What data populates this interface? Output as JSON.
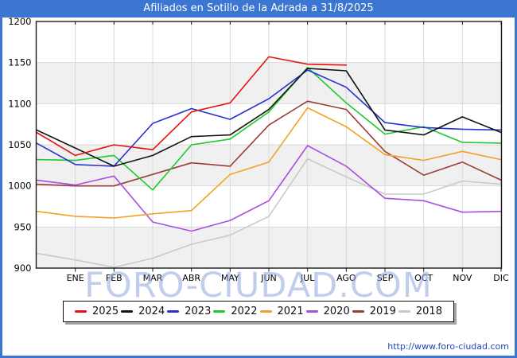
{
  "window": {
    "title": "Afiliados en Sotillo de la Adrada a 31/8/2025",
    "title_bar_color": "#3b76d3"
  },
  "chart_data": {
    "type": "line",
    "title": "Afiliados en Sotillo de la Adrada a 31/8/2025",
    "x_labels": [
      "ENE",
      "FEB",
      "MAR",
      "ABR",
      "MAY",
      "JUN",
      "JUL",
      "AGO",
      "SEP",
      "OCT",
      "NOV",
      "DIC"
    ],
    "x_axis_note": "first value of each series is plotted on the left axis edge and equals that year's previous December",
    "ylim": [
      900,
      1200
    ],
    "y_ticks": [
      900,
      950,
      1000,
      1050,
      1100,
      1150,
      1200
    ],
    "grid": true,
    "band_color": "#f0f0f0",
    "grid_color": "#d9d9d9",
    "legend_position": "bottom",
    "series": [
      {
        "name": "2025",
        "color": "#e81010",
        "values": [
          1065,
          1037,
          1050,
          1044,
          1090,
          1101,
          1157,
          1148,
          1147
        ]
      },
      {
        "name": "2024",
        "color": "#141414",
        "values": [
          1068,
          1046,
          1024,
          1037,
          1060,
          1062,
          1093,
          1143,
          1140,
          1068,
          1062,
          1084,
          1065
        ]
      },
      {
        "name": "2023",
        "color": "#2433cf",
        "values": [
          1052,
          1026,
          1024,
          1076,
          1094,
          1081,
          1106,
          1141,
          1120,
          1077,
          1071,
          1069,
          1068
        ]
      },
      {
        "name": "2022",
        "color": "#1ecb2e",
        "values": [
          1032,
          1031,
          1037,
          995,
          1050,
          1057,
          1090,
          1144,
          1101,
          1063,
          1072,
          1053,
          1052
        ]
      },
      {
        "name": "2021",
        "color": "#f2a124",
        "values": [
          969,
          963,
          961,
          966,
          970,
          1014,
          1029,
          1095,
          1072,
          1038,
          1031,
          1042,
          1032
        ]
      },
      {
        "name": "2020",
        "color": "#a74fe3",
        "values": [
          1007,
          1001,
          1012,
          956,
          945,
          958,
          982,
          1049,
          1024,
          985,
          982,
          968,
          969
        ]
      },
      {
        "name": "2019",
        "color": "#9c3d39",
        "values": [
          1002,
          1000,
          1000,
          1014,
          1028,
          1024,
          1074,
          1103,
          1093,
          1042,
          1013,
          1029,
          1007
        ]
      },
      {
        "name": "2018",
        "color": "#c9c9c9",
        "values": [
          918,
          910,
          901,
          912,
          929,
          940,
          963,
          1033,
          1011,
          990,
          990,
          1006,
          1002
        ]
      }
    ]
  },
  "watermark": {
    "text": "FORO-CIUDAD.COM"
  },
  "footer": {
    "url": "http://www.foro-ciudad.com"
  }
}
